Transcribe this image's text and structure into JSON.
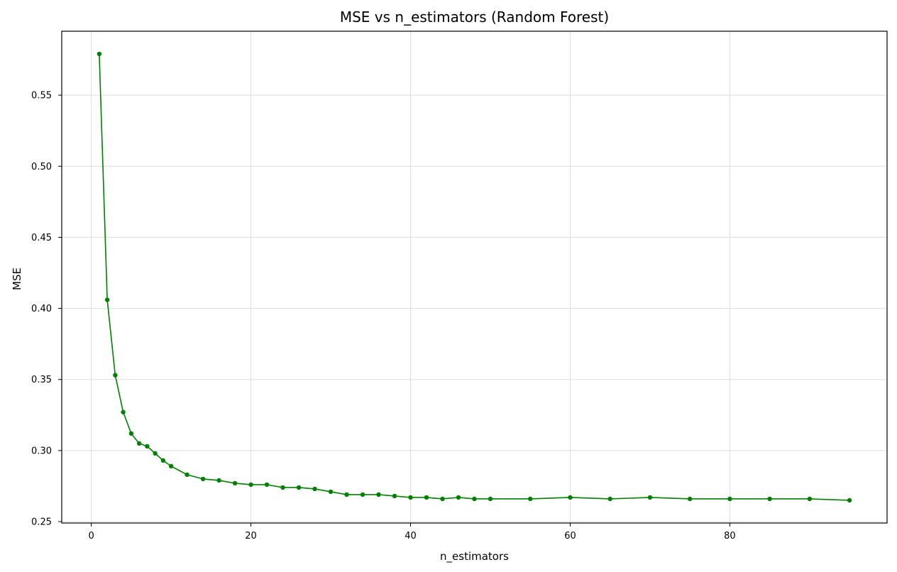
{
  "chart_data": {
    "type": "line",
    "title": "MSE vs n_estimators (Random Forest)",
    "xlabel": "n_estimators",
    "ylabel": "MSE",
    "xlim": [
      -3.7,
      99.7
    ],
    "ylim": [
      0.249,
      0.595
    ],
    "xticks": [
      0,
      20,
      40,
      60,
      80
    ],
    "yticks": [
      0.25,
      0.3,
      0.35,
      0.4,
      0.45,
      0.5,
      0.55
    ],
    "xtick_labels": [
      "0",
      "20",
      "40",
      "60",
      "80"
    ],
    "ytick_labels": [
      "0.25",
      "0.30",
      "0.35",
      "0.40",
      "0.45",
      "0.50",
      "0.55"
    ],
    "grid": true,
    "legend": "none",
    "series": [
      {
        "color": "#008000",
        "marker": "circle",
        "x": [
          1,
          2,
          3,
          4,
          5,
          6,
          7,
          8,
          9,
          10,
          12,
          14,
          16,
          18,
          20,
          22,
          24,
          26,
          28,
          30,
          32,
          34,
          36,
          38,
          40,
          42,
          44,
          46,
          48,
          50,
          55,
          60,
          65,
          70,
          75,
          80,
          85,
          90,
          95
        ],
        "y": [
          0.579,
          0.406,
          0.353,
          0.327,
          0.312,
          0.305,
          0.303,
          0.298,
          0.293,
          0.289,
          0.283,
          0.28,
          0.279,
          0.277,
          0.276,
          0.276,
          0.274,
          0.274,
          0.273,
          0.271,
          0.269,
          0.269,
          0.269,
          0.268,
          0.267,
          0.267,
          0.266,
          0.267,
          0.266,
          0.266,
          0.266,
          0.267,
          0.266,
          0.267,
          0.266,
          0.266,
          0.266,
          0.266,
          0.265
        ]
      }
    ]
  }
}
